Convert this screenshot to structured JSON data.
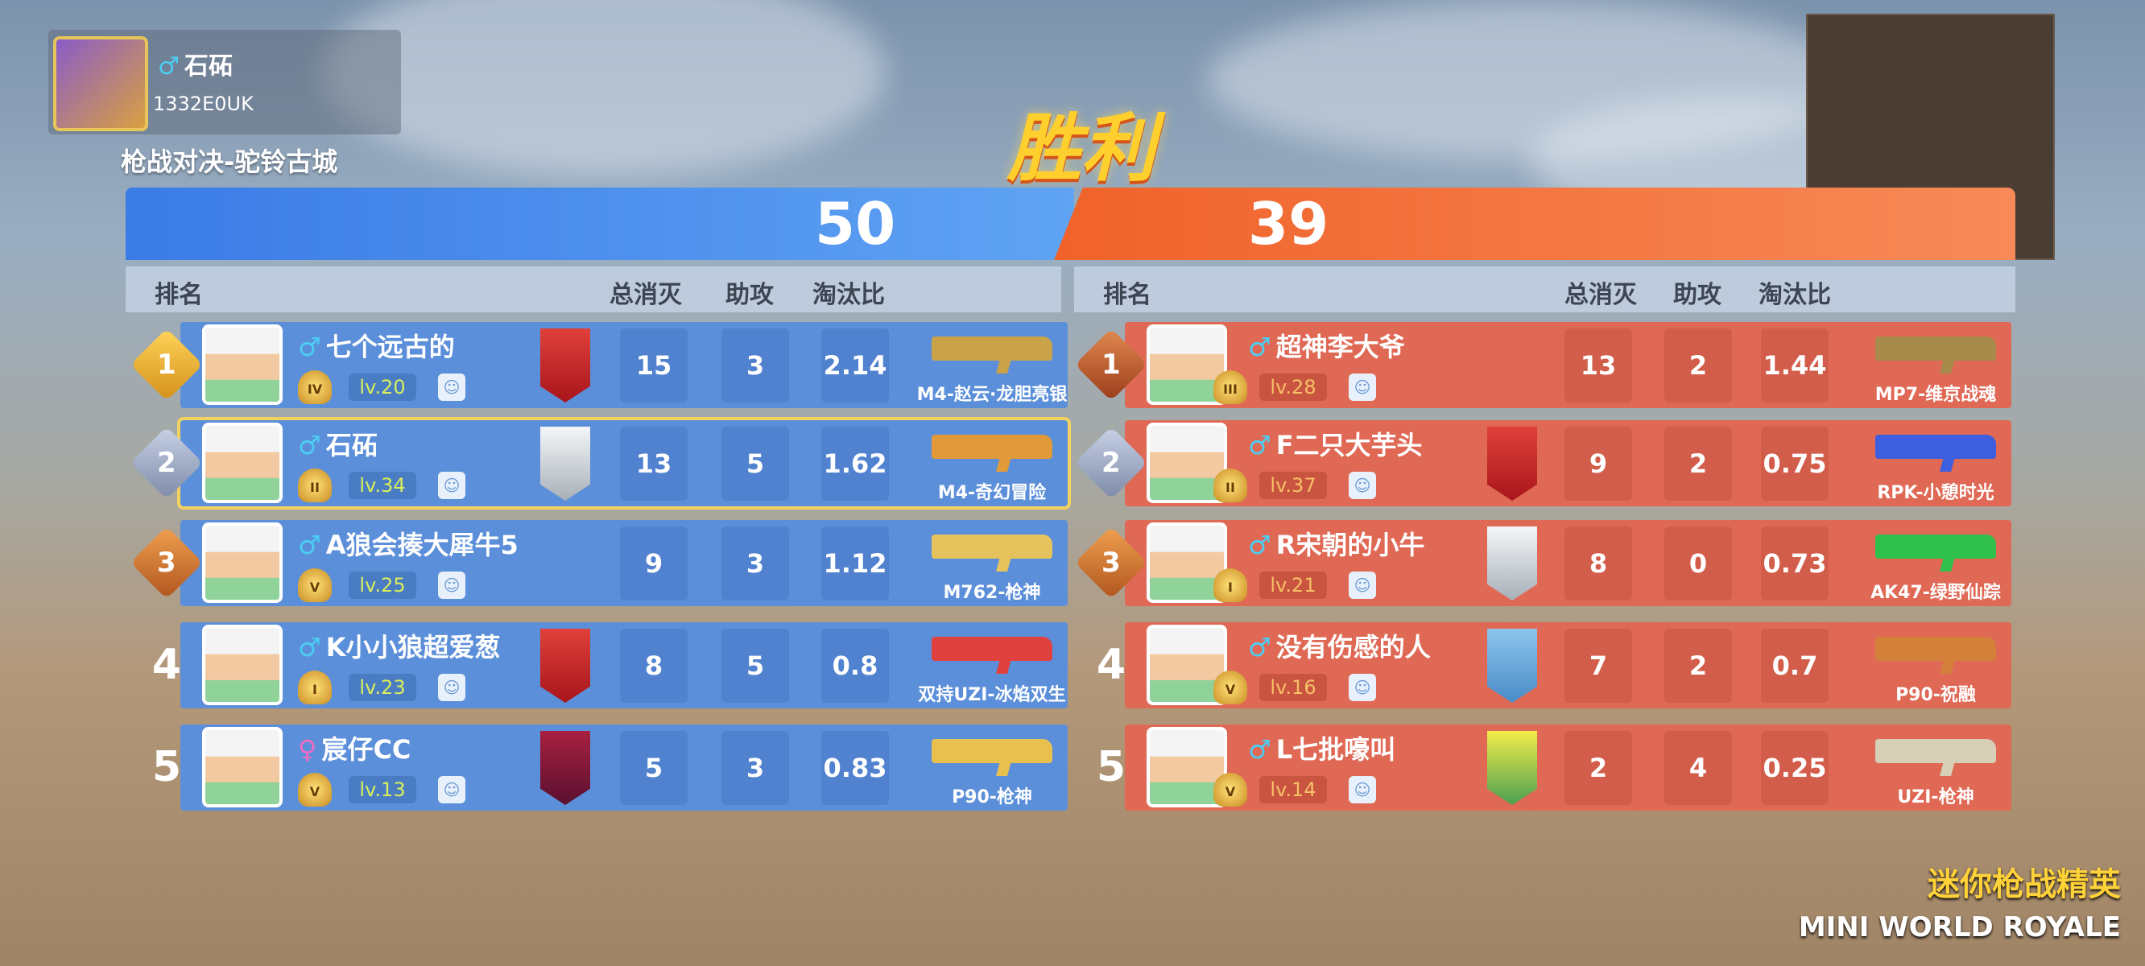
{
  "player": {
    "name": "石砳",
    "gender": "♂",
    "id": "1332E0UK"
  },
  "map_title": "枪战对决-驼铃古城",
  "result": "胜利",
  "colors": {
    "blue_team": "#5c8fd9",
    "red_team": "#df6955",
    "highlight": "#f3d35f",
    "victory": "#ffcf2e"
  },
  "headers": {
    "rank": "排名",
    "kills": "总消灭",
    "assists": "助攻",
    "ratio": "淘汰比"
  },
  "teams": [
    {
      "score": "50",
      "players": [
        {
          "rank": "1",
          "gender": "♂",
          "name": "七个远古的",
          "tier": "IV",
          "level": "lv.20",
          "emblem": "red",
          "kills": "15",
          "assists": "3",
          "ratio": "2.14",
          "weapon": "M4-赵云·龙胆亮银",
          "gun_color": "#c9a24a"
        },
        {
          "rank": "2",
          "gender": "♂",
          "name": "石砳",
          "tier": "II",
          "level": "lv.34",
          "emblem": "silver",
          "kills": "13",
          "assists": "5",
          "ratio": "1.62",
          "weapon": "M4-奇幻冒险",
          "gun_color": "#e09a3a",
          "me": true
        },
        {
          "rank": "3",
          "gender": "♂",
          "name": "A狼会揍大犀牛5",
          "tier": "V",
          "level": "lv.25",
          "emblem": "",
          "kills": "9",
          "assists": "3",
          "ratio": "1.12",
          "weapon": "M762-枪神",
          "gun_color": "#e6c25c"
        },
        {
          "rank": "4",
          "gender": "♂",
          "name": "K小小狼超爱葱",
          "tier": "I",
          "level": "lv.23",
          "emblem": "red",
          "kills": "8",
          "assists": "5",
          "ratio": "0.8",
          "weapon": "双持UZI-冰焰双生",
          "gun_color": "#e0403e"
        },
        {
          "rank": "5",
          "gender": "♀",
          "name": "宸仔CC",
          "tier": "V",
          "level": "lv.13",
          "emblem": "purple",
          "kills": "5",
          "assists": "3",
          "ratio": "0.83",
          "weapon": "P90-枪神",
          "gun_color": "#e8c050"
        }
      ]
    },
    {
      "score": "39",
      "players": [
        {
          "rank": "1",
          "gender": "♂",
          "name": "超神李大爷",
          "tier": "III",
          "level": "lv.28",
          "emblem": "",
          "kills": "13",
          "assists": "2",
          "ratio": "1.44",
          "weapon": "MP7-维京战魂",
          "gun_color": "#a88a4a"
        },
        {
          "rank": "2",
          "gender": "♂",
          "name": "F二只大芋头",
          "tier": "II",
          "level": "lv.37",
          "emblem": "red",
          "kills": "9",
          "assists": "2",
          "ratio": "0.75",
          "weapon": "RPK-小憩时光",
          "gun_color": "#3e5ee0"
        },
        {
          "rank": "3",
          "gender": "♂",
          "name": "R宋朝的小牛",
          "tier": "I",
          "level": "lv.21",
          "emblem": "silver",
          "kills": "8",
          "assists": "0",
          "ratio": "0.73",
          "weapon": "AK47-绿野仙踪",
          "gun_color": "#2ec04a"
        },
        {
          "rank": "4",
          "gender": "♂",
          "name": "没有伤感的人",
          "tier": "V",
          "level": "lv.16",
          "emblem": "blue",
          "kills": "7",
          "assists": "2",
          "ratio": "0.7",
          "weapon": "P90-祝融",
          "gun_color": "#d4803a"
        },
        {
          "rank": "5",
          "gender": "♂",
          "name": "L七批嚎叫",
          "tier": "V",
          "level": "lv.14",
          "emblem": "yellow",
          "kills": "2",
          "assists": "4",
          "ratio": "0.25",
          "weapon": "UZI-枪神",
          "gun_color": "#d8cfb8"
        }
      ]
    }
  ],
  "logo": {
    "cn": "迷你枪战精英",
    "en": "MINI WORLD ROYALE"
  }
}
